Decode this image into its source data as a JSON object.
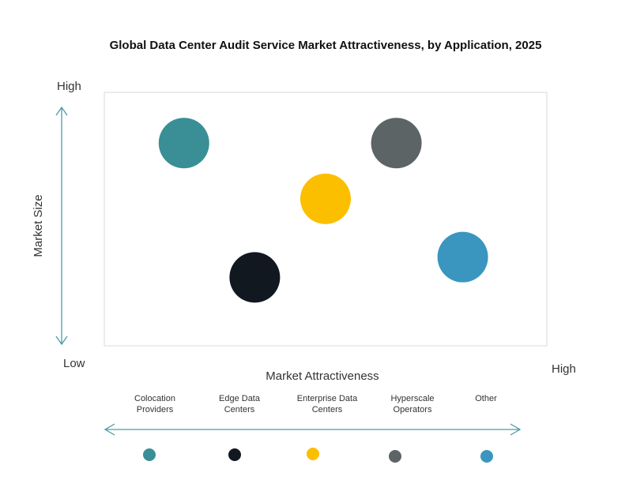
{
  "chart_data": {
    "type": "scatter",
    "title": "Global Data Center Audit Service Market Attractiveness,  by Application, 2025",
    "xlabel": "Market Attractiveness",
    "ylabel": "Market Size",
    "x_low_label": "Low",
    "x_high_label": "High",
    "y_high_label": "High",
    "xlim": [
      0,
      10
    ],
    "ylim": [
      0,
      10
    ],
    "grid": false,
    "legend_placement": "bottom",
    "series": [
      {
        "name": "Colocation Providers",
        "label_lines": [
          "Colocation",
          "Providers"
        ],
        "x": 1.8,
        "y": 8.0,
        "color": "#3a8f96"
      },
      {
        "name": "Edge Data Centers",
        "label_lines": [
          "Edge Data",
          "Centers"
        ],
        "x": 3.4,
        "y": 2.7,
        "color": "#111820"
      },
      {
        "name": "Enterprise Data Centers",
        "label_lines": [
          "Enterprise Data",
          "Centers"
        ],
        "x": 5.0,
        "y": 5.8,
        "color": "#fbbf00"
      },
      {
        "name": "Hyperscale Operators",
        "label_lines": [
          "Hyperscale",
          "Operators"
        ],
        "x": 6.6,
        "y": 8.0,
        "color": "#5c6466"
      },
      {
        "name": "Other",
        "label_lines": [
          "Other"
        ],
        "x": 8.1,
        "y": 3.5,
        "color": "#3a96bf"
      }
    ],
    "axis_arrow_color": "#4a9aa8"
  }
}
